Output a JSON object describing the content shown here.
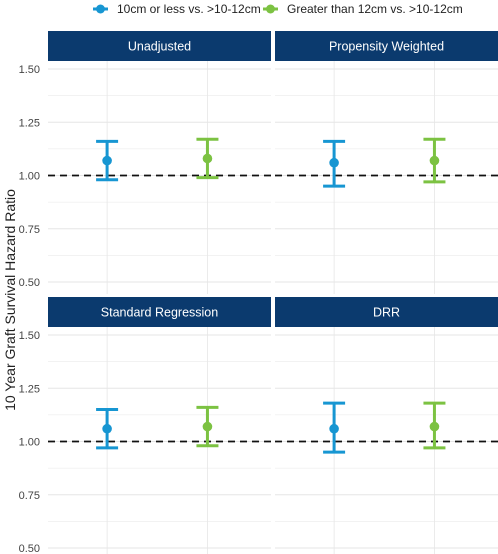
{
  "chart_data": {
    "type": "errorbar",
    "ylabel": "10 Year Graft Survival Hazard Ratio",
    "ylim": [
      0.5,
      1.5
    ],
    "yticks": [
      "1.50",
      "1.25",
      "1.00",
      "0.75",
      "0.50"
    ],
    "reference_line": 1.0,
    "colors": {
      "strip": "#0b3a6e",
      "grid": "#e6e6e6"
    },
    "legend_position": "top",
    "series": [
      {
        "name": "10cm or less vs. >10-12cm",
        "color": "#1796d2"
      },
      {
        "name": "Greater than 12cm vs. >10-12cm",
        "color": "#7cc242"
      }
    ],
    "panels": [
      {
        "title": "Unadjusted",
        "points": [
          {
            "estimate": 1.07,
            "lower": 0.98,
            "upper": 1.16
          },
          {
            "estimate": 1.08,
            "lower": 0.99,
            "upper": 1.17
          }
        ]
      },
      {
        "title": "Propensity Weighted",
        "points": [
          {
            "estimate": 1.06,
            "lower": 0.95,
            "upper": 1.16
          },
          {
            "estimate": 1.07,
            "lower": 0.97,
            "upper": 1.17
          }
        ]
      },
      {
        "title": "Standard Regression",
        "points": [
          {
            "estimate": 1.06,
            "lower": 0.97,
            "upper": 1.15
          },
          {
            "estimate": 1.07,
            "lower": 0.98,
            "upper": 1.16
          }
        ]
      },
      {
        "title": "DRR",
        "points": [
          {
            "estimate": 1.06,
            "lower": 0.95,
            "upper": 1.18
          },
          {
            "estimate": 1.07,
            "lower": 0.97,
            "upper": 1.18
          }
        ]
      }
    ]
  }
}
